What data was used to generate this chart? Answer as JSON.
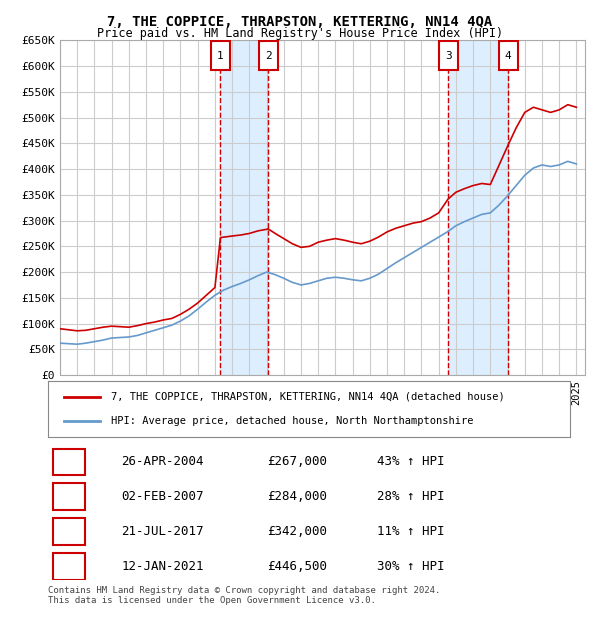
{
  "title": "7, THE COPPICE, THRAPSTON, KETTERING, NN14 4QA",
  "subtitle": "Price paid vs. HM Land Registry's House Price Index (HPI)",
  "ylabel_ticks": [
    "£0",
    "£50K",
    "£100K",
    "£150K",
    "£200K",
    "£250K",
    "£300K",
    "£350K",
    "£400K",
    "£450K",
    "£500K",
    "£550K",
    "£600K",
    "£650K"
  ],
  "ylim": [
    0,
    650000
  ],
  "ytick_vals": [
    0,
    50000,
    100000,
    150000,
    200000,
    250000,
    300000,
    350000,
    400000,
    450000,
    500000,
    550000,
    600000,
    650000
  ],
  "xmin": 1995.0,
  "xmax": 2025.5,
  "background_color": "#ffffff",
  "plot_bg_color": "#ffffff",
  "grid_color": "#cccccc",
  "transactions": [
    {
      "num": 1,
      "date_num": 2004.32,
      "price": 267000,
      "label": "26-APR-2004",
      "price_str": "£267,000",
      "pct": "43% ↑ HPI"
    },
    {
      "num": 2,
      "date_num": 2007.09,
      "price": 284000,
      "label": "02-FEB-2007",
      "price_str": "£284,000",
      "pct": "28% ↑ HPI"
    },
    {
      "num": 3,
      "date_num": 2017.55,
      "price": 342000,
      "label": "21-JUL-2017",
      "price_str": "£342,000",
      "pct": "11% ↑ HPI"
    },
    {
      "num": 4,
      "date_num": 2021.03,
      "price": 446500,
      "label": "12-JAN-2021",
      "price_str": "£446,500",
      "pct": "30% ↑ HPI"
    }
  ],
  "red_line_color": "#cc0000",
  "blue_line_color": "#6699cc",
  "shade_color": "#ddeeff",
  "vline_color": "#cc0000",
  "marker_box_color": "#cc0000",
  "legend_label_red": "7, THE COPPICE, THRAPSTON, KETTERING, NN14 4QA (detached house)",
  "legend_label_blue": "HPI: Average price, detached house, North Northamptonshire",
  "footer1": "Contains HM Land Registry data © Crown copyright and database right 2024.",
  "footer2": "This data is licensed under the Open Government Licence v3.0.",
  "red_x": [
    1995.0,
    1995.5,
    1996.0,
    1996.5,
    1997.0,
    1997.5,
    1998.0,
    1998.5,
    1999.0,
    1999.5,
    2000.0,
    2000.5,
    2001.0,
    2001.5,
    2002.0,
    2002.5,
    2003.0,
    2003.5,
    2004.0,
    2004.32,
    2004.32,
    2005.0,
    2005.5,
    2006.0,
    2006.5,
    2007.0,
    2007.09,
    2007.09,
    2007.5,
    2008.0,
    2008.5,
    2009.0,
    2009.5,
    2010.0,
    2010.5,
    2011.0,
    2011.5,
    2012.0,
    2012.5,
    2013.0,
    2013.5,
    2014.0,
    2014.5,
    2015.0,
    2015.5,
    2016.0,
    2016.5,
    2017.0,
    2017.55,
    2017.55,
    2018.0,
    2018.5,
    2019.0,
    2019.5,
    2020.0,
    2021.03,
    2021.03,
    2021.5,
    2022.0,
    2022.5,
    2023.0,
    2023.5,
    2024.0,
    2024.5,
    2025.0
  ],
  "red_y": [
    90000,
    88000,
    86000,
    87000,
    90000,
    93000,
    95000,
    94000,
    93000,
    96000,
    100000,
    103000,
    107000,
    110000,
    118000,
    128000,
    140000,
    155000,
    170000,
    267000,
    267000,
    270000,
    272000,
    275000,
    280000,
    283000,
    284000,
    284000,
    275000,
    265000,
    255000,
    248000,
    250000,
    258000,
    262000,
    265000,
    262000,
    258000,
    255000,
    260000,
    268000,
    278000,
    285000,
    290000,
    295000,
    298000,
    305000,
    315000,
    342000,
    342000,
    355000,
    362000,
    368000,
    372000,
    370000,
    446500,
    446500,
    480000,
    510000,
    520000,
    515000,
    510000,
    515000,
    525000,
    520000
  ],
  "blue_x": [
    1995.0,
    1995.5,
    1996.0,
    1996.5,
    1997.0,
    1997.5,
    1998.0,
    1998.5,
    1999.0,
    1999.5,
    2000.0,
    2000.5,
    2001.0,
    2001.5,
    2002.0,
    2002.5,
    2003.0,
    2003.5,
    2004.0,
    2004.5,
    2005.0,
    2005.5,
    2006.0,
    2006.5,
    2007.0,
    2007.5,
    2008.0,
    2008.5,
    2009.0,
    2009.5,
    2010.0,
    2010.5,
    2011.0,
    2011.5,
    2012.0,
    2012.5,
    2013.0,
    2013.5,
    2014.0,
    2014.5,
    2015.0,
    2015.5,
    2016.0,
    2016.5,
    2017.0,
    2017.5,
    2018.0,
    2018.5,
    2019.0,
    2019.5,
    2020.0,
    2020.5,
    2021.0,
    2021.5,
    2022.0,
    2022.5,
    2023.0,
    2023.5,
    2024.0,
    2024.5,
    2025.0
  ],
  "blue_y": [
    62000,
    61000,
    60000,
    62000,
    65000,
    68000,
    72000,
    73000,
    74000,
    77000,
    82000,
    87000,
    92000,
    97000,
    105000,
    115000,
    128000,
    142000,
    155000,
    165000,
    172000,
    178000,
    185000,
    193000,
    200000,
    195000,
    188000,
    180000,
    175000,
    178000,
    183000,
    188000,
    190000,
    188000,
    185000,
    183000,
    188000,
    196000,
    207000,
    218000,
    228000,
    238000,
    248000,
    258000,
    268000,
    278000,
    290000,
    298000,
    305000,
    312000,
    315000,
    330000,
    348000,
    368000,
    388000,
    402000,
    408000,
    405000,
    408000,
    415000,
    410000
  ]
}
